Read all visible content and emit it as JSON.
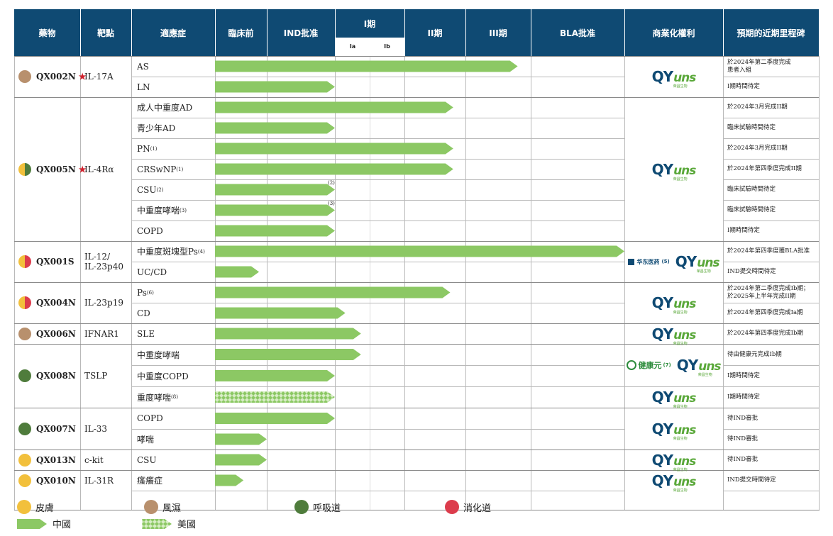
{
  "headers": {
    "drug": "藥物",
    "target": "靶點",
    "indication": "適應症",
    "preclinical": "臨床前",
    "ind": "IND批准",
    "phase1": "I期",
    "phase1a": "Ia",
    "phase1b": "Ib",
    "phase2": "II期",
    "phase3": "III期",
    "bla": "BLA批准",
    "rights": "商業化權利",
    "milestone": "預期的近期里程碑"
  },
  "stages": [
    "臨床前",
    "IND批准",
    "Ia",
    "Ib",
    "II期",
    "III期",
    "BLA批准"
  ],
  "colors": {
    "header_bg": "#0f4a73",
    "arrow_china": "#8cc864",
    "arrow_us": "#b5dd98",
    "skin": "#f2c03c",
    "rheum": "#b8906d",
    "resp": "#4f7c3c",
    "digest": "#dc3c4c"
  },
  "drugs": [
    {
      "name": "QX002N",
      "star": "★",
      "colors": [
        "rheum"
      ],
      "target": "IL-17A",
      "rows": [
        {
          "indication": "AS",
          "note": "",
          "progress": 5.8,
          "region": "china",
          "milestone": "於2024年第二季度完成\n患者入組"
        },
        {
          "indication": "LN",
          "note": "",
          "progress": 2.0,
          "region": "china",
          "milestone": "I期時間待定"
        }
      ],
      "rights": [
        {
          "logos": [
            "qyuns"
          ]
        }
      ]
    },
    {
      "name": "QX005N",
      "star": "★",
      "colors": [
        "skin",
        "resp"
      ],
      "target": "IL-4Rα",
      "rows": [
        {
          "indication": "成人中重度AD",
          "note": "",
          "progress": 4.8,
          "region": "china",
          "milestone": "於2024年3月完成II期"
        },
        {
          "indication": "青少年AD",
          "note": "",
          "progress": 2.0,
          "region": "china",
          "milestone": "臨床試驗時間待定"
        },
        {
          "indication": "PN",
          "note": "(1)",
          "progress": 4.8,
          "region": "china",
          "milestone": "於2024年3月完成II期"
        },
        {
          "indication": "CRSwNP",
          "note": "(1)",
          "progress": 4.8,
          "region": "china",
          "milestone": "於2024年第四季度完成II期"
        },
        {
          "indication": "CSU",
          "note": "(2)",
          "progress": 2.0,
          "region": "china",
          "milestone": "臨床試驗時間待定",
          "arrow_note": "(2)"
        },
        {
          "indication": "中重度哮喘",
          "note": "(3)",
          "progress": 2.0,
          "region": "china",
          "milestone": "臨床試驗時間待定",
          "arrow_note": "(3)"
        },
        {
          "indication": "COPD",
          "note": "",
          "progress": 2.0,
          "region": "china",
          "milestone": "I期時間待定"
        }
      ],
      "rights": [
        {
          "logos": [
            "qyuns"
          ]
        }
      ]
    },
    {
      "name": "QX001S",
      "star": "",
      "colors": [
        "skin",
        "digest"
      ],
      "target": "IL-12/\nIL-23p40",
      "rows": [
        {
          "indication": "中重度斑塊型Ps",
          "note": "(4)",
          "progress": 7.0,
          "region": "china",
          "milestone": "於2024年第四季度獲BLA批准"
        },
        {
          "indication": "UC/CD",
          "note": "",
          "progress": 0.85,
          "region": "china",
          "milestone": "IND提交時間待定"
        }
      ],
      "rights": [
        {
          "logos": [
            "huadong",
            "qyuns"
          ],
          "note": "(5)"
        }
      ]
    },
    {
      "name": "QX004N",
      "star": "",
      "colors": [
        "skin",
        "digest"
      ],
      "target": "IL-23p19",
      "rows": [
        {
          "indication": "Ps",
          "note": "(6)",
          "progress": 4.75,
          "region": "china",
          "milestone": "於2024年第二季度完成Ib期；\n於2025年上半年完成II期"
        },
        {
          "indication": "CD",
          "note": "",
          "progress": 2.3,
          "region": "china",
          "milestone": "於2024年第四季度完成Ia期"
        }
      ],
      "rights": [
        {
          "logos": [
            "qyuns"
          ]
        }
      ]
    },
    {
      "name": "QX006N",
      "star": "",
      "colors": [
        "rheum"
      ],
      "target": "IFNAR1",
      "rows": [
        {
          "indication": "SLE",
          "note": "",
          "progress": 2.75,
          "region": "china",
          "milestone": "於2024年第四季度完成Ib期"
        }
      ],
      "rights": [
        {
          "logos": [
            "qyuns"
          ]
        }
      ]
    },
    {
      "name": "QX008N",
      "star": "",
      "colors": [
        "resp"
      ],
      "target": "TSLP",
      "rows": [
        {
          "indication": "中重度哮喘",
          "note": "",
          "progress": 2.75,
          "region": "china",
          "milestone": "待由健康元完成Ib期"
        },
        {
          "indication": "中重度COPD",
          "note": "",
          "progress": 2.0,
          "region": "china",
          "milestone": "I期時間待定"
        },
        {
          "indication": "重度哮喘",
          "note": "(8)",
          "progress": 2.0,
          "region": "us",
          "milestone": "I期時間待定"
        }
      ],
      "rights": [
        {
          "logos": [
            "joincare",
            "qyuns"
          ],
          "note": "(7)",
          "rows": 2
        },
        {
          "logos": [
            "qyuns"
          ],
          "rows": 1
        }
      ]
    },
    {
      "name": "QX007N",
      "star": "",
      "colors": [
        "resp"
      ],
      "target": "IL-33",
      "rows": [
        {
          "indication": "COPD",
          "note": "",
          "progress": 2.0,
          "region": "china",
          "milestone": "待IND審批"
        },
        {
          "indication": "哮喘",
          "note": "",
          "progress": 1.0,
          "region": "china",
          "milestone": "待IND審批"
        }
      ],
      "rights": [
        {
          "logos": [
            "qyuns"
          ]
        }
      ]
    },
    {
      "name": "QX013N",
      "star": "",
      "colors": [
        "skin"
      ],
      "target": "c-kit",
      "rows": [
        {
          "indication": "CSU",
          "note": "",
          "progress": 1.0,
          "region": "china",
          "milestone": "待IND審批"
        }
      ],
      "rights": [
        {
          "logos": [
            "qyuns"
          ]
        }
      ]
    },
    {
      "name": "QX010N",
      "star": "",
      "colors": [
        "skin"
      ],
      "target": "IL-31R",
      "rows": [
        {
          "indication": "瘙癢症",
          "note": "",
          "progress": 0.55,
          "region": "china",
          "milestone": "IND提交時間待定"
        }
      ],
      "rights": [
        {
          "logos": [
            "qyuns"
          ]
        }
      ]
    }
  ],
  "logos": {
    "qyuns": {
      "main": "QY",
      "accent": "uns",
      "sub": "荣昌生物"
    },
    "huadong": {
      "text": "华东医药"
    },
    "joincare": {
      "text": "健康元",
      "sub": "Joincare"
    }
  },
  "legend": {
    "therapeutic": [
      {
        "label": "皮膚",
        "color": "skin"
      },
      {
        "label": "風濕",
        "color": "rheum"
      },
      {
        "label": "呼吸道",
        "color": "resp"
      },
      {
        "label": "消化道",
        "color": "digest"
      }
    ],
    "regions": [
      {
        "label": "中國",
        "region": "china"
      },
      {
        "label": "美國",
        "region": "us"
      }
    ]
  }
}
